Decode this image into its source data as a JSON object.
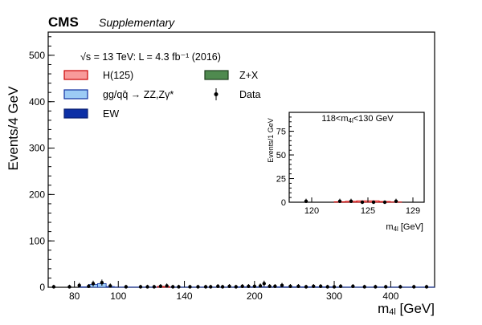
{
  "chart_data": [
    {
      "type": "bar",
      "title": "CMS",
      "subtitle": "Supplementary",
      "annotation": "√s = 13 TeV: L = 4.3 fb⁻¹ (2016)",
      "xlabel": "m4l [GeV]",
      "ylabel": "Events/4 GeV",
      "xscale": "log",
      "xlim": [
        70,
        500
      ],
      "ylim": [
        0,
        550
      ],
      "xticks": [
        80,
        100,
        140,
        200,
        300,
        400
      ],
      "yticks": [
        0,
        100,
        200,
        300,
        400,
        500
      ],
      "legend_position": "top-left",
      "legend": [
        {
          "label": "H(125)",
          "color": "#f89a9a",
          "edge": "#cc0000",
          "kind": "box"
        },
        {
          "label": "Z+X",
          "color": "#4f8a4f",
          "edge": "#1d3d1d",
          "kind": "box"
        },
        {
          "label": "gg/qq̄ → ZZ,Zγ*",
          "color": "#9ccbf5",
          "edge": "#1030a0",
          "kind": "box"
        },
        {
          "label": "Data",
          "color": "#000000",
          "kind": "marker"
        },
        {
          "label": "EW",
          "color": "#0c2fa6",
          "edge": "#0a1f70",
          "kind": "box"
        }
      ],
      "series": [
        {
          "name": "gg/qq̄ → ZZ,Zγ*",
          "bins": [
            [
              82,
              86,
              1
            ],
            [
              86,
              90,
              6
            ],
            [
              90,
              94,
              8
            ],
            [
              94,
              98,
              1.5
            ],
            [
              98,
              180,
              0.5
            ],
            [
              180,
              300,
              1
            ],
            [
              300,
              500,
              0.5
            ]
          ]
        },
        {
          "name": "H(125)",
          "bins": [
            [
              122,
              126,
              2
            ],
            [
              126,
              130,
              1.5
            ]
          ]
        },
        {
          "name": "Data",
          "x": [
            72,
            78,
            82,
            86,
            88,
            92,
            96,
            104,
            112,
            116,
            120,
            124,
            128,
            132,
            136,
            144,
            150,
            156,
            160,
            166,
            170,
            176,
            182,
            188,
            194,
            200,
            206,
            210,
            216,
            222,
            230,
            240,
            250,
            260,
            270,
            280,
            290,
            300,
            310,
            330,
            350,
            370,
            390,
            420,
            450,
            480
          ],
          "y": [
            1,
            1,
            4,
            2,
            8,
            10,
            3,
            1,
            1,
            1,
            1,
            2,
            3,
            1,
            1,
            1,
            1,
            1,
            1,
            2,
            1,
            2,
            1,
            2,
            2,
            2,
            3,
            8,
            2,
            2,
            4,
            2,
            2,
            1,
            2,
            2,
            1,
            1,
            2,
            2,
            1,
            1,
            1,
            1,
            1,
            1
          ]
        }
      ]
    },
    {
      "type": "bar",
      "title": "118<m4l<130 GeV",
      "xlabel": "m4l [GeV]",
      "ylabel": "Events/1 GeV",
      "xlim": [
        118,
        130
      ],
      "ylim": [
        0,
        95
      ],
      "xticks": [
        120,
        125,
        129
      ],
      "yticks": [
        0,
        25,
        50,
        75
      ],
      "series": [
        {
          "name": "H(125)",
          "bins": [
            [
              122,
              123,
              0.5
            ],
            [
              123,
              124,
              1
            ],
            [
              124,
              125,
              1.5
            ],
            [
              125,
              126,
              1.5
            ],
            [
              126,
              127,
              0.8
            ],
            [
              127,
              128,
              0.3
            ]
          ]
        },
        {
          "name": "Data",
          "x": [
            119.5,
            122.5,
            123.5,
            124.5,
            125.5,
            126.5,
            127.5
          ],
          "y": [
            1,
            1,
            1,
            0,
            0,
            0,
            1
          ]
        }
      ]
    }
  ],
  "labels": {
    "cms": "CMS",
    "supplementary": "Supplementary",
    "lumi": "√s = 13 TeV: L = 4.3 fb⁻¹ (2016)",
    "xlabel_m": "m",
    "xlabel_sub": "4l",
    "xlabel_unit": " [GeV]",
    "ylabel": "Events/4 GeV",
    "inset_title_pre": "118<m",
    "inset_title_post": "<130 GeV",
    "inset_ylabel": "Events/1 GeV"
  }
}
